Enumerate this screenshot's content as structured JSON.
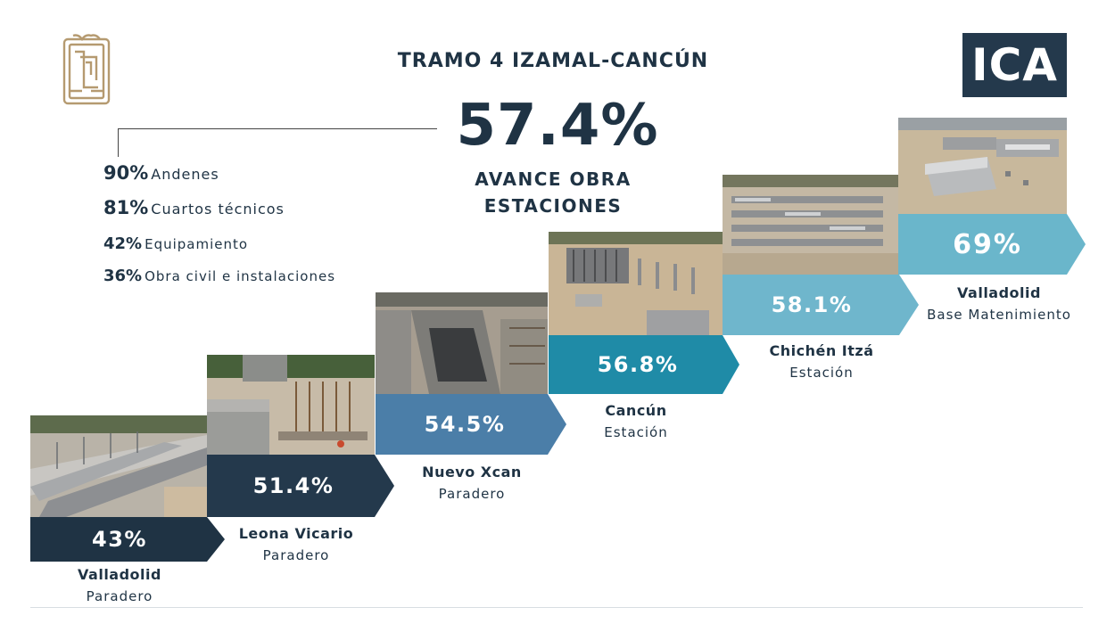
{
  "header": {
    "title": "TRAMO 4 IZAMAL-CANCÚN",
    "overall_percent": "57.4%",
    "overall_label_line1": "AVANCE OBRA",
    "overall_label_line2": "ESTACIONES",
    "brand_logo": "ICA"
  },
  "metrics": [
    {
      "percent": "90%",
      "label": "Andenes"
    },
    {
      "percent": "81%",
      "label": "Cuartos técnicos"
    },
    {
      "percent": "42%",
      "label": "Equipamiento"
    },
    {
      "percent": "36%",
      "label": "Obra civil e instalaciones"
    }
  ],
  "stations": [
    {
      "percent": "43%",
      "value": 43,
      "name": "Valladolid",
      "type": "Paradero",
      "color": "#1f3344"
    },
    {
      "percent": "51.4%",
      "value": 51.4,
      "name": "Leona Vicario",
      "type": "Paradero",
      "color": "#24394c"
    },
    {
      "percent": "54.5%",
      "value": 54.5,
      "name": "Nuevo Xcan",
      "type": "Paradero",
      "color": "#4b7ea8"
    },
    {
      "percent": "56.8%",
      "value": 56.8,
      "name": "Cancún",
      "type": "Estación",
      "color": "#1f8ba7"
    },
    {
      "percent": "58.1%",
      "value": 58.1,
      "name": "Chichén Itzá",
      "type": "Estación",
      "color": "#6fb6cc"
    },
    {
      "percent": "69%",
      "value": 69,
      "name": "Valladolid",
      "type": "Base Matenimiento",
      "color": "#6ab6cb"
    }
  ],
  "icons": {
    "left_logo": "maya-glyph-logo",
    "right_logo": "ica-logo"
  }
}
